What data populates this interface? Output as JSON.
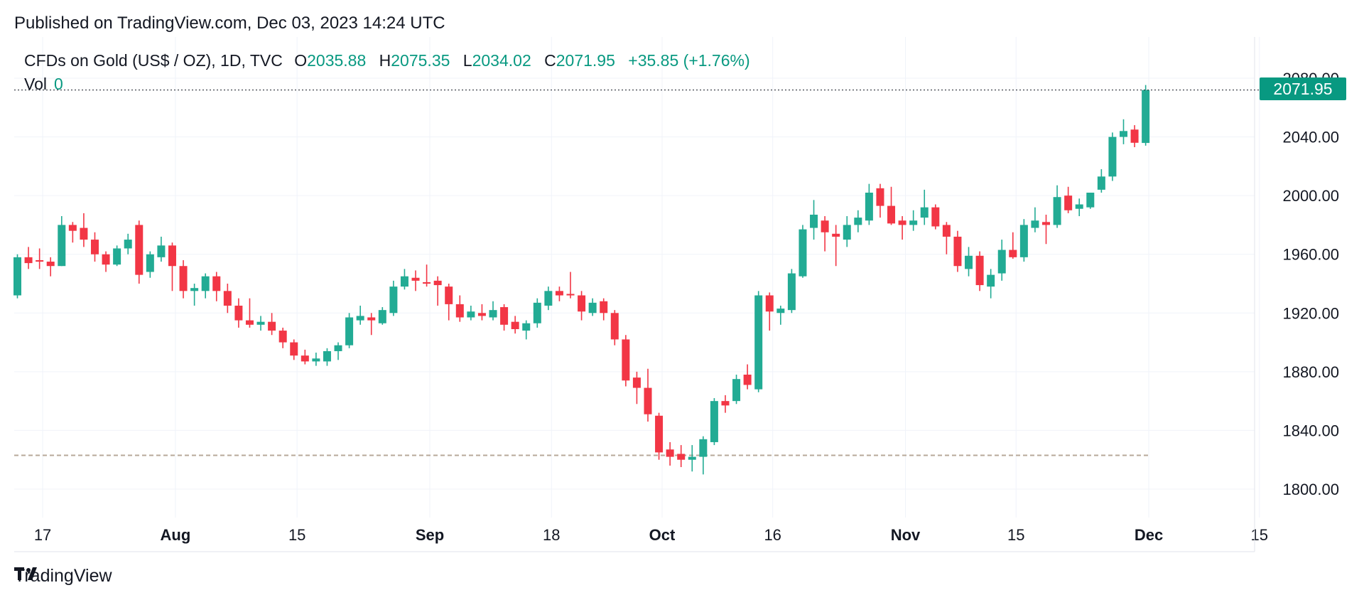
{
  "header": {
    "published": "Published on TradingView.com, Dec 03, 2023 14:24 UTC"
  },
  "legend": {
    "symbol": "CFDs on Gold (US$ / OZ), 1D, TVC",
    "o_label": "O",
    "o_value": "2035.88",
    "h_label": "H",
    "h_value": "2075.35",
    "l_label": "L",
    "l_value": "2034.02",
    "c_label": "C",
    "c_value": "2071.95",
    "change": "+35.85 (+1.76%)",
    "vol_label": "Vol",
    "vol_value": "0"
  },
  "last_price_label": "2071.95",
  "brand": {
    "name": "TradingView"
  },
  "colors": {
    "up": "#22ab94",
    "down": "#f23645",
    "grid": "#f0f3fa",
    "text": "#131722",
    "accent": "#089981"
  },
  "chart_data": {
    "type": "candlestick",
    "ylim": [
      1780,
      2090
    ],
    "y_ticks": [
      "1800.00",
      "1840.00",
      "1880.00",
      "1920.00",
      "1960.00",
      "2000.00",
      "2040.00",
      "2080.00"
    ],
    "x_ticks": [
      "17",
      "Aug",
      "15",
      "Sep",
      "18",
      "Oct",
      "16",
      "Nov",
      "15",
      "Dec",
      "15"
    ],
    "x_ticks_index": [
      1,
      13,
      24,
      36,
      47,
      57,
      67,
      79,
      89,
      101,
      111
    ],
    "support_level": 1823,
    "last_price": 2071.95,
    "candles": [
      [
        1932,
        1960,
        1930,
        1958
      ],
      [
        1958,
        1965,
        1950,
        1954
      ],
      [
        1956,
        1964,
        1950,
        1955
      ],
      [
        1955,
        1958,
        1945,
        1952
      ],
      [
        1952,
        1986,
        1952,
        1980
      ],
      [
        1980,
        1982,
        1968,
        1976
      ],
      [
        1978,
        1988,
        1965,
        1970
      ],
      [
        1970,
        1975,
        1955,
        1960
      ],
      [
        1960,
        1962,
        1948,
        1953
      ],
      [
        1953,
        1966,
        1952,
        1964
      ],
      [
        1964,
        1974,
        1960,
        1970
      ],
      [
        1980,
        1983,
        1940,
        1946
      ],
      [
        1948,
        1962,
        1944,
        1960
      ],
      [
        1958,
        1972,
        1955,
        1966
      ],
      [
        1966,
        1968,
        1935,
        1952
      ],
      [
        1952,
        1956,
        1930,
        1935
      ],
      [
        1935,
        1940,
        1925,
        1937
      ],
      [
        1935,
        1947,
        1930,
        1945
      ],
      [
        1945,
        1948,
        1928,
        1935
      ],
      [
        1935,
        1940,
        1920,
        1925
      ],
      [
        1925,
        1930,
        1910,
        1915
      ],
      [
        1915,
        1930,
        1910,
        1912
      ],
      [
        1912,
        1918,
        1908,
        1914
      ],
      [
        1914,
        1920,
        1905,
        1908
      ],
      [
        1908,
        1910,
        1896,
        1900
      ],
      [
        1900,
        1902,
        1888,
        1891
      ],
      [
        1891,
        1895,
        1885,
        1887
      ],
      [
        1887,
        1893,
        1884,
        1889
      ],
      [
        1887,
        1896,
        1884,
        1894
      ],
      [
        1894,
        1900,
        1888,
        1898
      ],
      [
        1898,
        1920,
        1896,
        1917
      ],
      [
        1915,
        1925,
        1912,
        1918
      ],
      [
        1917,
        1920,
        1905,
        1915
      ],
      [
        1913,
        1924,
        1912,
        1922
      ],
      [
        1920,
        1942,
        1918,
        1938
      ],
      [
        1938,
        1950,
        1936,
        1945
      ],
      [
        1944,
        1949,
        1935,
        1942
      ],
      [
        1941,
        1953,
        1938,
        1940
      ],
      [
        1942,
        1945,
        1925,
        1939
      ],
      [
        1938,
        1940,
        1915,
        1926
      ],
      [
        1926,
        1932,
        1914,
        1917
      ],
      [
        1917,
        1925,
        1915,
        1921
      ],
      [
        1920,
        1926,
        1915,
        1918
      ],
      [
        1917,
        1928,
        1915,
        1922
      ],
      [
        1924,
        1926,
        1908,
        1912
      ],
      [
        1914,
        1918,
        1906,
        1909
      ],
      [
        1908,
        1915,
        1902,
        1913
      ],
      [
        1913,
        1930,
        1910,
        1927
      ],
      [
        1925,
        1938,
        1922,
        1935
      ],
      [
        1935,
        1938,
        1928,
        1932
      ],
      [
        1933,
        1948,
        1930,
        1932
      ],
      [
        1932,
        1935,
        1915,
        1921
      ],
      [
        1920,
        1930,
        1918,
        1927
      ],
      [
        1928,
        1930,
        1915,
        1920
      ],
      [
        1920,
        1922,
        1898,
        1902
      ],
      [
        1902,
        1905,
        1870,
        1874
      ],
      [
        1876,
        1880,
        1858,
        1869
      ],
      [
        1869,
        1882,
        1846,
        1851
      ],
      [
        1850,
        1852,
        1820,
        1825
      ],
      [
        1827,
        1832,
        1816,
        1822
      ],
      [
        1824,
        1830,
        1815,
        1820
      ],
      [
        1820,
        1830,
        1812,
        1822
      ],
      [
        1822,
        1836,
        1810,
        1834
      ],
      [
        1832,
        1862,
        1830,
        1860
      ],
      [
        1860,
        1864,
        1852,
        1857
      ],
      [
        1860,
        1878,
        1858,
        1875
      ],
      [
        1878,
        1885,
        1868,
        1871
      ],
      [
        1868,
        1935,
        1866,
        1932
      ],
      [
        1932,
        1934,
        1908,
        1921
      ],
      [
        1920,
        1925,
        1912,
        1923
      ],
      [
        1922,
        1950,
        1920,
        1947
      ],
      [
        1945,
        1980,
        1944,
        1977
      ],
      [
        1978,
        1997,
        1970,
        1987
      ],
      [
        1983,
        1986,
        1962,
        1975
      ],
      [
        1974,
        1980,
        1952,
        1972
      ],
      [
        1970,
        1986,
        1965,
        1980
      ],
      [
        1980,
        1990,
        1975,
        1985
      ],
      [
        1983,
        2008,
        1980,
        2002
      ],
      [
        2005,
        2008,
        1985,
        1993
      ],
      [
        1993,
        2006,
        1980,
        1981
      ],
      [
        1983,
        1986,
        1970,
        1980
      ],
      [
        1980,
        1990,
        1976,
        1983
      ],
      [
        1985,
        2004,
        1980,
        1992
      ],
      [
        1992,
        1994,
        1977,
        1979
      ],
      [
        1980,
        1982,
        1960,
        1972
      ],
      [
        1972,
        1976,
        1948,
        1952
      ],
      [
        1950,
        1965,
        1945,
        1959
      ],
      [
        1959,
        1962,
        1935,
        1939
      ],
      [
        1938,
        1950,
        1930,
        1946
      ],
      [
        1947,
        1970,
        1942,
        1963
      ],
      [
        1963,
        1975,
        1957,
        1958
      ],
      [
        1958,
        1984,
        1955,
        1980
      ],
      [
        1978,
        1992,
        1975,
        1983
      ],
      [
        1982,
        1987,
        1967,
        1980
      ],
      [
        1980,
        2007,
        1978,
        1999
      ],
      [
        2000,
        2006,
        1988,
        1990
      ],
      [
        1991,
        1998,
        1986,
        1994
      ],
      [
        1992,
        2002,
        1991,
        2002
      ],
      [
        2004,
        2018,
        2002,
        2013
      ],
      [
        2013,
        2043,
        2010,
        2040
      ],
      [
        2040,
        2052,
        2035,
        2044
      ],
      [
        2045,
        2048,
        2033,
        2036
      ],
      [
        2035.88,
        2075.35,
        2034.02,
        2071.95
      ]
    ]
  }
}
